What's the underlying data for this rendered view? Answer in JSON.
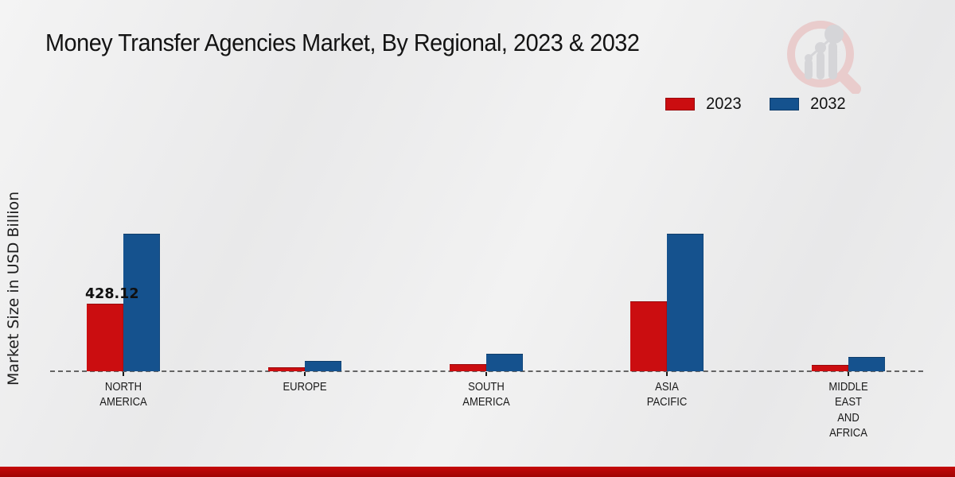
{
  "title": "Money Transfer Agencies Market, By Regional, 2023 & 2032",
  "y_axis_label": "Market Size in USD Billion",
  "legend": {
    "items": [
      {
        "label": "2023",
        "color": "#cb0d10"
      },
      {
        "label": "2032",
        "color": "#15528e"
      }
    ]
  },
  "chart_data": {
    "type": "bar",
    "title": "Money Transfer Agencies Market, By Regional, 2023 & 2032",
    "xlabel": "",
    "ylabel": "Market Size in USD Billion",
    "categories": [
      "NORTH AMERICA",
      "EUROPE",
      "SOUTH AMERICA",
      "ASIA PACIFIC",
      "MIDDLE EAST AND AFRICA"
    ],
    "category_label_lines": [
      [
        "NORTH",
        "AMERICA"
      ],
      [
        "EUROPE"
      ],
      [
        "SOUTH",
        "AMERICA"
      ],
      [
        "ASIA",
        "PACIFIC"
      ],
      [
        "MIDDLE",
        "EAST",
        "AND",
        "AFRICA"
      ]
    ],
    "series": [
      {
        "name": "2023",
        "color": "#cb0d10",
        "values": [
          428.12,
          25,
          45,
          443,
          40
        ]
      },
      {
        "name": "2032",
        "color": "#15528e",
        "values": [
          870,
          65,
          110,
          870,
          90
        ]
      }
    ],
    "annotations": [
      {
        "text": "428.12",
        "category_index": 0,
        "series_index": 0
      }
    ],
    "baseline_style": "dashed",
    "grid": false,
    "legend_position": "top-right",
    "note": "Only the 428.12 value is labeled on the chart; other values estimated from bar heights."
  },
  "branding": {
    "logo": "market-research-future-magnifier-watermark",
    "bottom_bar_color": "#c50909"
  }
}
